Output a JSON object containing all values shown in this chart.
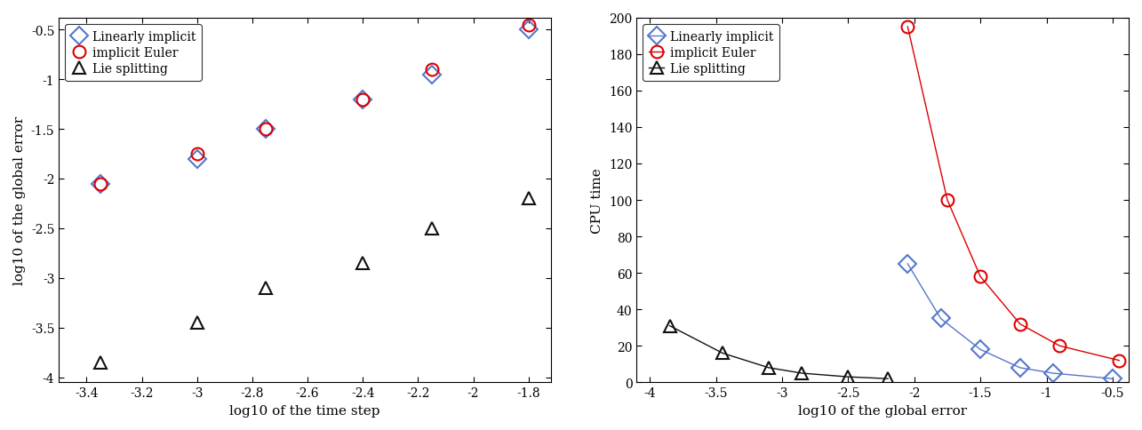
{
  "left": {
    "lin_impl_x": [
      -3.35,
      -3.0,
      -2.75,
      -2.4,
      -2.15,
      -1.8
    ],
    "lin_impl_y": [
      -2.05,
      -1.8,
      -1.5,
      -1.2,
      -0.95,
      -0.5
    ],
    "imp_euler_x": [
      -3.35,
      -3.0,
      -2.75,
      -2.4,
      -2.15,
      -1.8
    ],
    "imp_euler_y": [
      -2.05,
      -1.75,
      -1.5,
      -1.2,
      -0.9,
      -0.45
    ],
    "lie_x": [
      -3.35,
      -3.0,
      -2.75,
      -2.4,
      -2.15,
      -1.8
    ],
    "lie_y": [
      -3.85,
      -3.45,
      -3.1,
      -2.85,
      -2.5,
      -2.2
    ],
    "xlim": [
      -3.5,
      -1.72
    ],
    "ylim": [
      -4.05,
      -0.38
    ],
    "xticks": [
      -3.4,
      -3.2,
      -3.0,
      -2.8,
      -2.6,
      -2.4,
      -2.2,
      -2.0,
      -1.8
    ],
    "xtick_labels": [
      "-3.4",
      "-3.2",
      "-3",
      "-2.8",
      "-2.6",
      "-2.4",
      "-2.2",
      "-2",
      "-1.8"
    ],
    "yticks": [
      -4.0,
      -3.5,
      -3.0,
      -2.5,
      -2.0,
      -1.5,
      -1.0,
      -0.5
    ],
    "ytick_labels": [
      "-4",
      "-3.5",
      "-3",
      "-2.5",
      "-2",
      "-1.5",
      "-1",
      "-0.5"
    ],
    "xlabel": "log10 of the time step",
    "ylabel": "log10 of the global error"
  },
  "right": {
    "lin_impl_x": [
      -2.05,
      -1.8,
      -1.5,
      -1.2,
      -0.95,
      -0.5
    ],
    "lin_impl_y": [
      65,
      35,
      18,
      8,
      5,
      2
    ],
    "imp_euler_x": [
      -2.05,
      -1.75,
      -1.5,
      -1.2,
      -0.9,
      -0.45
    ],
    "imp_euler_y": [
      195,
      100,
      58,
      32,
      20,
      12
    ],
    "lie_x": [
      -3.85,
      -3.45,
      -3.1,
      -2.85,
      -2.5,
      -2.2
    ],
    "lie_y": [
      31,
      16,
      8,
      5,
      3,
      2
    ],
    "xlim": [
      -4.1,
      -0.38
    ],
    "ylim": [
      0,
      200
    ],
    "xticks": [
      -4.0,
      -3.5,
      -3.0,
      -2.5,
      -2.0,
      -1.5,
      -1.0,
      -0.5
    ],
    "xtick_labels": [
      "-4",
      "-3.5",
      "-3",
      "-2.5",
      "-2",
      "-1.5",
      "-1",
      "-0.5"
    ],
    "yticks": [
      0,
      20,
      40,
      60,
      80,
      100,
      120,
      140,
      160,
      180,
      200
    ],
    "ytick_labels": [
      "0",
      "20",
      "40",
      "60",
      "80",
      "100",
      "120",
      "140",
      "160",
      "180",
      "200"
    ],
    "xlabel": "log10 of the global error",
    "ylabel": "CPU time"
  },
  "legend_labels": [
    "Linearly implicit",
    "implicit Euler",
    "Lie splitting"
  ],
  "color_lin": "#5577CC",
  "color_euler": "#DD0000",
  "color_lie": "#111111"
}
